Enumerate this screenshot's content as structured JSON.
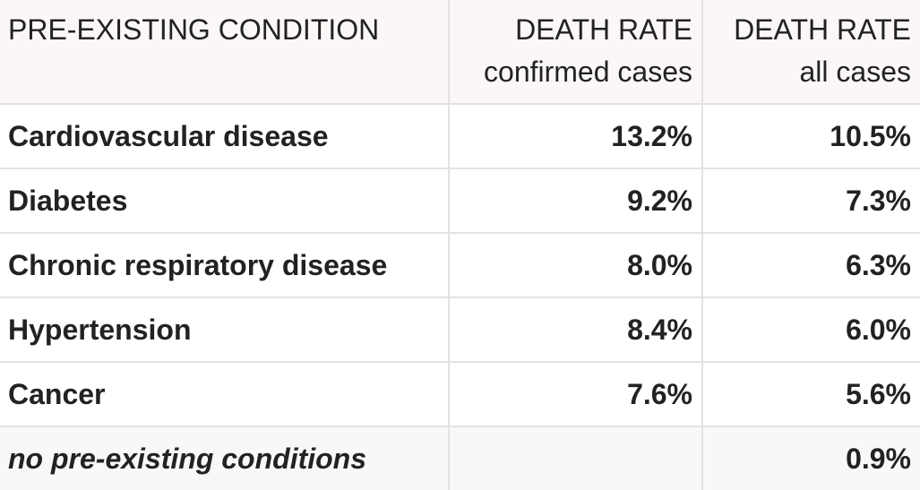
{
  "table": {
    "header": [
      {
        "title": "PRE-EXISTING CONDITION"
      },
      {
        "title": "DEATH RATE",
        "subtitle": "confirmed cases"
      },
      {
        "title": "DEATH RATE",
        "subtitle": "all cases"
      }
    ],
    "rows": [
      [
        "Cardiovascular disease",
        "13.2%",
        "10.5%"
      ],
      [
        "Diabetes",
        "9.2%",
        "7.3%"
      ],
      [
        "Chronic respiratory disease",
        "8.0%",
        "6.3%"
      ],
      [
        "Hypertension",
        "8.4%",
        "6.0%"
      ],
      [
        "Cancer",
        "7.6%",
        "5.6%"
      ],
      [
        "no pre-existing conditions",
        null,
        "0.9%"
      ]
    ]
  }
}
